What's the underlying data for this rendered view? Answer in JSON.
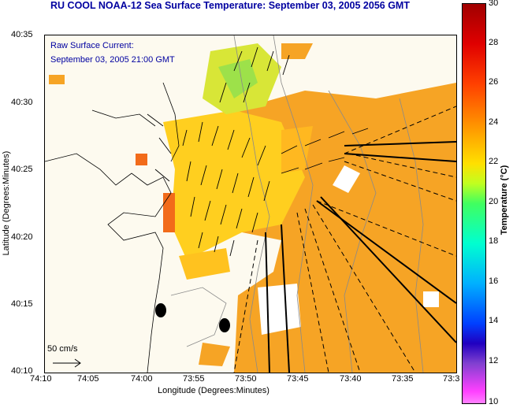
{
  "title": "RU COOL  NOAA-12  Sea Surface Temperature:  September 03, 2005 2056 GMT",
  "legend": {
    "line1": "Raw Surface Current:",
    "line2": "September 03, 2005 21:00 GMT"
  },
  "scale_label": "50 cm/s",
  "x_axis": {
    "label": "Longitude (Degrees:Minutes)",
    "ticks": [
      "74:10",
      "74:05",
      "74:00",
      "73:55",
      "73:50",
      "73:45",
      "73:40",
      "73:35",
      "73:3"
    ]
  },
  "y_axis": {
    "label": "Latitude (Degrees:Minutes)",
    "ticks": [
      "40:35",
      "40:30",
      "40:25",
      "40:20",
      "40:15",
      "40:10"
    ]
  },
  "colorbar": {
    "label": "Temperature (°C)",
    "ticks": [
      "30",
      "28",
      "26",
      "24",
      "22",
      "20",
      "18",
      "16",
      "14",
      "12",
      "10"
    ]
  },
  "colors": {
    "title": "#0000a0",
    "land": "#fdfaef",
    "sst_orange": "#f5a623",
    "sst_yellow": "#ffd21e",
    "sst_green": "#a8e04a"
  }
}
